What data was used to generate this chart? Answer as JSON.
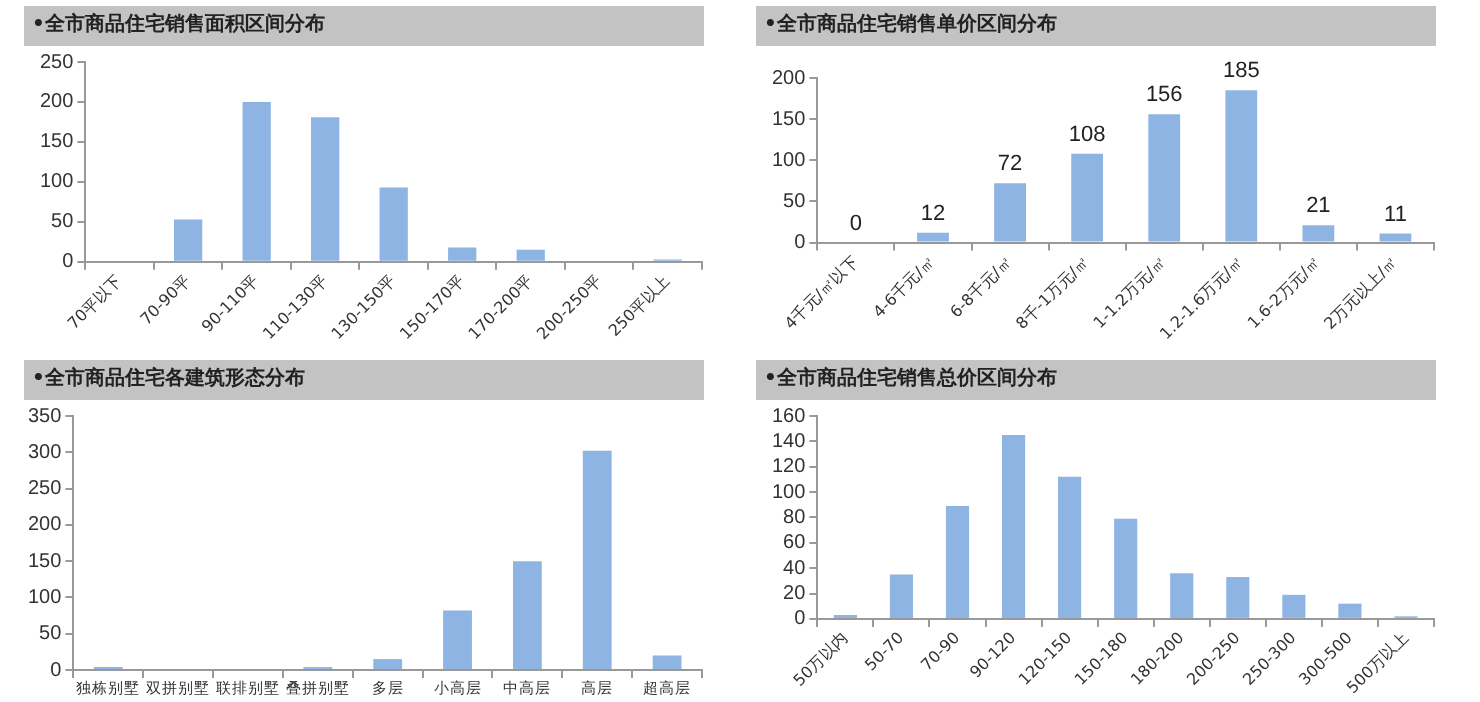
{
  "chart_data": [
    {
      "type": "bar",
      "title": "•全市商品住宅销售面积区间分布",
      "categories": [
        "70平以下",
        "70-90平",
        "90-110平",
        "110-130平",
        "130-150平",
        "150-170平",
        "170-200平",
        "200-250平",
        "250平以上"
      ],
      "values": [
        0,
        53,
        200,
        181,
        93,
        18,
        15,
        0,
        3
      ],
      "color": "#8db4e2",
      "ylim": [
        0,
        250
      ],
      "yticks": [
        0,
        50,
        100,
        150,
        200,
        250
      ]
    },
    {
      "type": "bar",
      "title": "•全市商品住宅销售单价区间分布",
      "categories": [
        "4千元/㎡以下",
        "4-6千元/㎡",
        "6-8千元/㎡",
        "8千-1万元/㎡",
        "1-1.2万元/㎡",
        "1.2-1.6万元/㎡",
        "1.6-2万元/㎡",
        "2万元以上/㎡"
      ],
      "values": [
        0,
        12,
        72,
        108,
        156,
        185,
        21,
        11
      ],
      "color": "#8db4e2",
      "ylim": [
        0,
        200
      ],
      "yticks": [
        0,
        50,
        100,
        150,
        200
      ],
      "data_labels": true
    },
    {
      "type": "bar",
      "title": "•全市商品住宅各建筑形态分布",
      "categories": [
        "独栋别墅",
        "双拼别墅",
        "联排别墅",
        "叠拼别墅",
        "多层",
        "小高层",
        "中高层",
        "高层",
        "超高层"
      ],
      "values": [
        4,
        0,
        0,
        4,
        15,
        82,
        150,
        302,
        20
      ],
      "color": "#8db4e2",
      "ylim": [
        0,
        350
      ],
      "yticks": [
        0,
        50,
        100,
        150,
        200,
        250,
        300,
        350
      ]
    },
    {
      "type": "bar",
      "title": "•全市商品住宅销售总价区间分布",
      "categories": [
        "50万以内",
        "50-70",
        "70-90",
        "90-120",
        "120-150",
        "150-180",
        "180-200",
        "200-250",
        "250-300",
        "300-500",
        "500万以上"
      ],
      "values": [
        3,
        35,
        89,
        145,
        112,
        79,
        36,
        33,
        19,
        12,
        2
      ],
      "color": "#8db4e2",
      "ylim": [
        0,
        160
      ],
      "yticks": [
        0,
        20,
        40,
        60,
        80,
        100,
        120,
        140,
        160
      ]
    }
  ]
}
